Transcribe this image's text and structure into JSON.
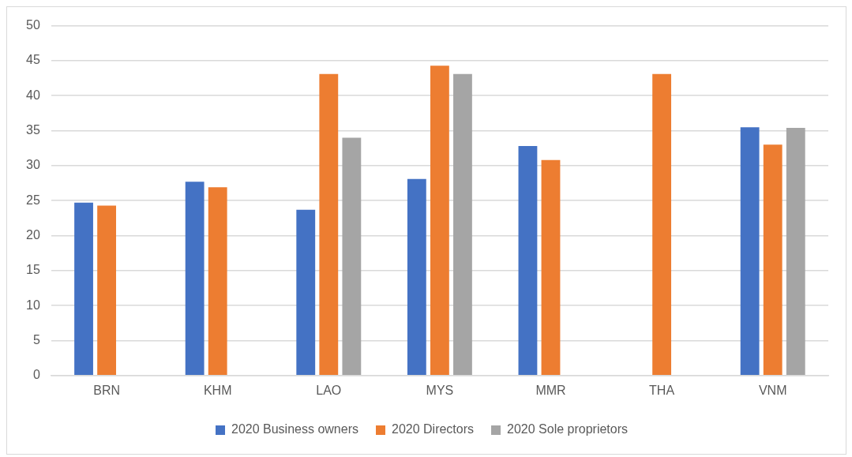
{
  "chart_data": {
    "type": "bar",
    "categories": [
      "BRN",
      "KHM",
      "LAO",
      "MYS",
      "MMR",
      "THA",
      "VNM"
    ],
    "series": [
      {
        "name": "2020 Business owners",
        "color": "#4472c4",
        "values": [
          24.7,
          27.7,
          23.7,
          28.1,
          32.8,
          null,
          35.5
        ]
      },
      {
        "name": "2020 Directors",
        "color": "#ed7d31",
        "values": [
          24.3,
          26.9,
          43.1,
          44.3,
          30.8,
          43.1,
          33.0
        ]
      },
      {
        "name": "2020 Sole proprietors",
        "color": "#a5a5a5",
        "values": [
          null,
          null,
          34.0,
          43.1,
          null,
          null,
          35.4
        ]
      }
    ],
    "ylim": [
      0,
      50
    ],
    "yticks": [
      0,
      5,
      10,
      15,
      20,
      25,
      30,
      35,
      40,
      45,
      50
    ],
    "grid": "y",
    "legend": "bottom"
  }
}
